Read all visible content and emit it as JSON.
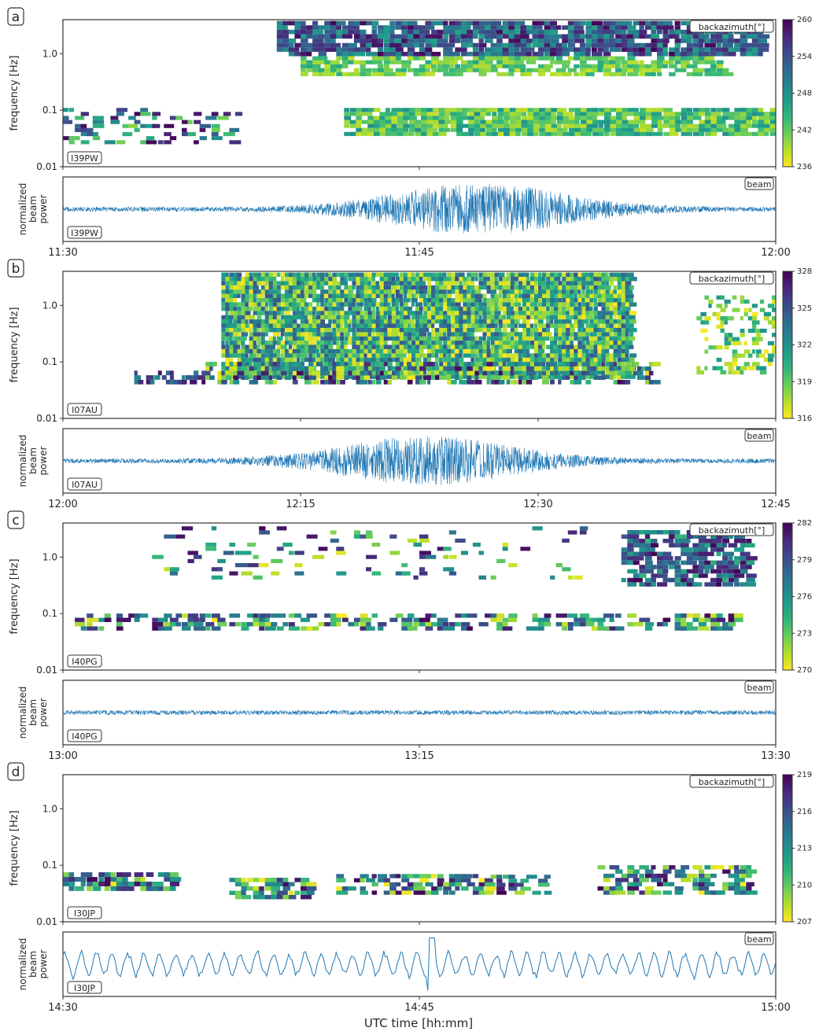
{
  "figure": {
    "xlabel": "UTC time [hh:mm]",
    "freq_ylabel": "frequency [Hz]",
    "beam_ylabel": [
      "normalized",
      "beam",
      "power"
    ],
    "baz_label": "backazimuth[°]",
    "beam_label": "beam",
    "colormap": "viridis",
    "colors": {
      "beam_line": "#1f77b4",
      "frame": "#333333",
      "viridis_low": "#fde725",
      "viridis_high": "#440154"
    }
  },
  "chart_data": [
    {
      "type": "heatmap",
      "panel": "a",
      "station": "I39PW",
      "ylabel": "frequency [Hz]",
      "yscale": "log",
      "ylim": [
        0.01,
        4
      ],
      "yticks": [
        "0.01",
        "0.1",
        "1.0"
      ],
      "xticks": [
        "11:30",
        "11:45",
        "12:00"
      ],
      "colorbar_label": "backazimuth[°]",
      "colorbar_range": [
        236,
        260
      ],
      "colorbar_ticks": [
        "236",
        "242",
        "248",
        "254",
        "260"
      ],
      "detections": [
        {
          "t": [
            11.83,
            30.0
          ],
          "f": [
            0.035,
            0.11
          ],
          "baz": [
            238,
            248
          ],
          "density": 0.9
        },
        {
          "t": [
            0.0,
            7.5
          ],
          "f": [
            0.025,
            0.11
          ],
          "baz": [
            240,
            260
          ],
          "density": 0.3
        },
        {
          "t": [
            9.0,
            29.5
          ],
          "f": [
            0.9,
            3.8
          ],
          "baz": [
            246,
            260
          ],
          "density": 0.85
        },
        {
          "t": [
            10.0,
            28.0
          ],
          "f": [
            0.4,
            0.9
          ],
          "baz": [
            238,
            246
          ],
          "density": 0.7
        }
      ],
      "beam": {
        "label": "beam",
        "envelope_peak_time": 17.5,
        "envelope_peak": 0.9
      }
    },
    {
      "type": "heatmap",
      "panel": "b",
      "station": "I07AU",
      "ylabel": "frequency [Hz]",
      "yscale": "log",
      "ylim": [
        0.01,
        4
      ],
      "yticks": [
        "0.01",
        "0.1",
        "1.0"
      ],
      "xticks": [
        "12:00",
        "12:15",
        "12:30",
        "12:45"
      ],
      "colorbar_label": "backazimuth[°]",
      "colorbar_range": [
        316,
        328
      ],
      "colorbar_ticks": [
        "316",
        "319",
        "322",
        "325",
        "328"
      ],
      "detections": [
        {
          "t": [
            10.0,
            36.0
          ],
          "f": [
            0.05,
            3.8
          ],
          "baz": [
            316,
            325
          ],
          "density": 0.95
        },
        {
          "t": [
            9.0,
            37.5
          ],
          "f": [
            0.04,
            0.1
          ],
          "baz": [
            316,
            328
          ],
          "density": 0.6
        },
        {
          "t": [
            4.0,
            9.0
          ],
          "f": [
            0.04,
            0.07
          ],
          "baz": [
            322,
            328
          ],
          "density": 0.3
        },
        {
          "t": [
            40.0,
            45.0
          ],
          "f": [
            0.06,
            1.5
          ],
          "baz": [
            316,
            322
          ],
          "density": 0.3
        }
      ],
      "beam": {
        "label": "beam",
        "envelope_peak_time": 23.0,
        "envelope_peak": 0.85
      }
    },
    {
      "type": "heatmap",
      "panel": "c",
      "station": "I40PG",
      "ylabel": "frequency [Hz]",
      "yscale": "log",
      "ylim": [
        0.01,
        4
      ],
      "yticks": [
        "0.01",
        "0.1",
        "1.0"
      ],
      "xticks": [
        "13:00",
        "13:15",
        "13:30"
      ],
      "colorbar_label": "backazimuth[°]",
      "colorbar_range": [
        270,
        282
      ],
      "colorbar_ticks": [
        "270",
        "273",
        "276",
        "279",
        "282"
      ],
      "detections": [
        {
          "t": [
            0.5,
            28.5
          ],
          "f": [
            0.05,
            0.1
          ],
          "baz": [
            270,
            282
          ],
          "density": 0.5
        },
        {
          "t": [
            23.5,
            29.0
          ],
          "f": [
            0.3,
            3.0
          ],
          "baz": [
            274,
            282
          ],
          "density": 0.7
        },
        {
          "t": [
            3.5,
            22.0
          ],
          "f": [
            0.4,
            3.5
          ],
          "baz": [
            270,
            282
          ],
          "density": 0.1
        }
      ],
      "beam": {
        "label": "beam",
        "envelope_peak_time": 15.0,
        "envelope_peak": 0.15
      }
    },
    {
      "type": "heatmap",
      "panel": "d",
      "station": "I30JP",
      "ylabel": "frequency [Hz]",
      "yscale": "log",
      "ylim": [
        0.01,
        4
      ],
      "yticks": [
        "0.01",
        "0.1",
        "1.0"
      ],
      "xticks": [
        "14:30",
        "14:45",
        "15:00"
      ],
      "colorbar_label": "backazimuth[°]",
      "colorbar_range": [
        207,
        219
      ],
      "colorbar_ticks": [
        "207",
        "210",
        "213",
        "216",
        "219"
      ],
      "detections": [
        {
          "t": [
            0.0,
            5.0
          ],
          "f": [
            0.035,
            0.075
          ],
          "baz": [
            207,
            219
          ],
          "density": 0.7
        },
        {
          "t": [
            7.0,
            10.5
          ],
          "f": [
            0.025,
            0.06
          ],
          "baz": [
            207,
            219
          ],
          "density": 0.7
        },
        {
          "t": [
            11.5,
            18.0
          ],
          "f": [
            0.03,
            0.07
          ],
          "baz": [
            207,
            219
          ],
          "density": 0.6
        },
        {
          "t": [
            18.0,
            20.5
          ],
          "f": [
            0.03,
            0.08
          ],
          "baz": [
            207,
            219
          ],
          "density": 0.4
        },
        {
          "t": [
            22.5,
            29.0
          ],
          "f": [
            0.03,
            0.1
          ],
          "baz": [
            207,
            219
          ],
          "density": 0.55
        }
      ],
      "beam": {
        "label": "beam",
        "envelope_peak_time": 15.5,
        "envelope_peak": 0.9
      }
    }
  ]
}
